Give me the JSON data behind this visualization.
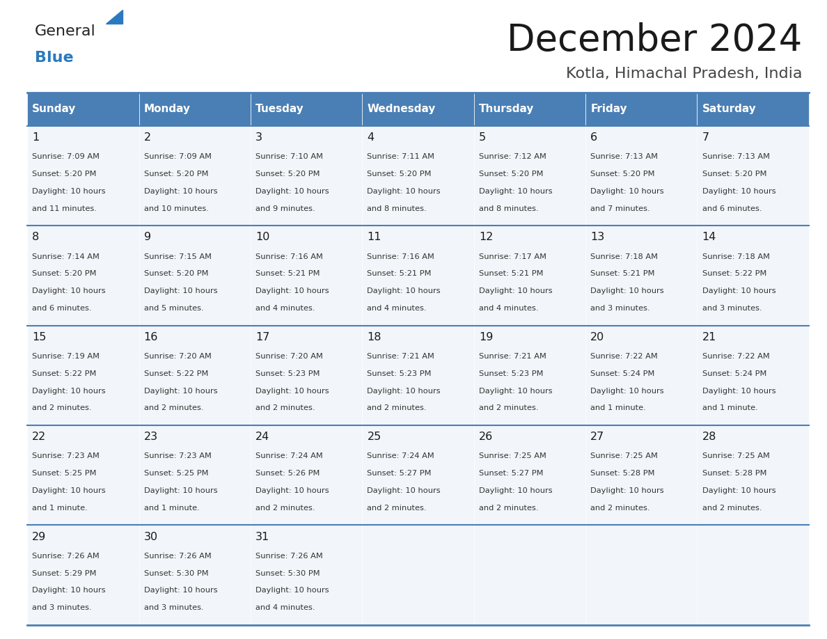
{
  "title": "December 2024",
  "subtitle": "Kotla, Himachal Pradesh, India",
  "header_bg_color": "#4a7fb5",
  "header_text_color": "#ffffff",
  "cell_bg": "#f2f5f9",
  "row_separator_color": "#4a7fb5",
  "day_headers": [
    "Sunday",
    "Monday",
    "Tuesday",
    "Wednesday",
    "Thursday",
    "Friday",
    "Saturday"
  ],
  "calendar_data": [
    [
      {
        "day": "1",
        "lines": [
          "Sunrise: 7:09 AM",
          "Sunset: 5:20 PM",
          "Daylight: 10 hours",
          "and 11 minutes."
        ]
      },
      {
        "day": "2",
        "lines": [
          "Sunrise: 7:09 AM",
          "Sunset: 5:20 PM",
          "Daylight: 10 hours",
          "and 10 minutes."
        ]
      },
      {
        "day": "3",
        "lines": [
          "Sunrise: 7:10 AM",
          "Sunset: 5:20 PM",
          "Daylight: 10 hours",
          "and 9 minutes."
        ]
      },
      {
        "day": "4",
        "lines": [
          "Sunrise: 7:11 AM",
          "Sunset: 5:20 PM",
          "Daylight: 10 hours",
          "and 8 minutes."
        ]
      },
      {
        "day": "5",
        "lines": [
          "Sunrise: 7:12 AM",
          "Sunset: 5:20 PM",
          "Daylight: 10 hours",
          "and 8 minutes."
        ]
      },
      {
        "day": "6",
        "lines": [
          "Sunrise: 7:13 AM",
          "Sunset: 5:20 PM",
          "Daylight: 10 hours",
          "and 7 minutes."
        ]
      },
      {
        "day": "7",
        "lines": [
          "Sunrise: 7:13 AM",
          "Sunset: 5:20 PM",
          "Daylight: 10 hours",
          "and 6 minutes."
        ]
      }
    ],
    [
      {
        "day": "8",
        "lines": [
          "Sunrise: 7:14 AM",
          "Sunset: 5:20 PM",
          "Daylight: 10 hours",
          "and 6 minutes."
        ]
      },
      {
        "day": "9",
        "lines": [
          "Sunrise: 7:15 AM",
          "Sunset: 5:20 PM",
          "Daylight: 10 hours",
          "and 5 minutes."
        ]
      },
      {
        "day": "10",
        "lines": [
          "Sunrise: 7:16 AM",
          "Sunset: 5:21 PM",
          "Daylight: 10 hours",
          "and 4 minutes."
        ]
      },
      {
        "day": "11",
        "lines": [
          "Sunrise: 7:16 AM",
          "Sunset: 5:21 PM",
          "Daylight: 10 hours",
          "and 4 minutes."
        ]
      },
      {
        "day": "12",
        "lines": [
          "Sunrise: 7:17 AM",
          "Sunset: 5:21 PM",
          "Daylight: 10 hours",
          "and 4 minutes."
        ]
      },
      {
        "day": "13",
        "lines": [
          "Sunrise: 7:18 AM",
          "Sunset: 5:21 PM",
          "Daylight: 10 hours",
          "and 3 minutes."
        ]
      },
      {
        "day": "14",
        "lines": [
          "Sunrise: 7:18 AM",
          "Sunset: 5:22 PM",
          "Daylight: 10 hours",
          "and 3 minutes."
        ]
      }
    ],
    [
      {
        "day": "15",
        "lines": [
          "Sunrise: 7:19 AM",
          "Sunset: 5:22 PM",
          "Daylight: 10 hours",
          "and 2 minutes."
        ]
      },
      {
        "day": "16",
        "lines": [
          "Sunrise: 7:20 AM",
          "Sunset: 5:22 PM",
          "Daylight: 10 hours",
          "and 2 minutes."
        ]
      },
      {
        "day": "17",
        "lines": [
          "Sunrise: 7:20 AM",
          "Sunset: 5:23 PM",
          "Daylight: 10 hours",
          "and 2 minutes."
        ]
      },
      {
        "day": "18",
        "lines": [
          "Sunrise: 7:21 AM",
          "Sunset: 5:23 PM",
          "Daylight: 10 hours",
          "and 2 minutes."
        ]
      },
      {
        "day": "19",
        "lines": [
          "Sunrise: 7:21 AM",
          "Sunset: 5:23 PM",
          "Daylight: 10 hours",
          "and 2 minutes."
        ]
      },
      {
        "day": "20",
        "lines": [
          "Sunrise: 7:22 AM",
          "Sunset: 5:24 PM",
          "Daylight: 10 hours",
          "and 1 minute."
        ]
      },
      {
        "day": "21",
        "lines": [
          "Sunrise: 7:22 AM",
          "Sunset: 5:24 PM",
          "Daylight: 10 hours",
          "and 1 minute."
        ]
      }
    ],
    [
      {
        "day": "22",
        "lines": [
          "Sunrise: 7:23 AM",
          "Sunset: 5:25 PM",
          "Daylight: 10 hours",
          "and 1 minute."
        ]
      },
      {
        "day": "23",
        "lines": [
          "Sunrise: 7:23 AM",
          "Sunset: 5:25 PM",
          "Daylight: 10 hours",
          "and 1 minute."
        ]
      },
      {
        "day": "24",
        "lines": [
          "Sunrise: 7:24 AM",
          "Sunset: 5:26 PM",
          "Daylight: 10 hours",
          "and 2 minutes."
        ]
      },
      {
        "day": "25",
        "lines": [
          "Sunrise: 7:24 AM",
          "Sunset: 5:27 PM",
          "Daylight: 10 hours",
          "and 2 minutes."
        ]
      },
      {
        "day": "26",
        "lines": [
          "Sunrise: 7:25 AM",
          "Sunset: 5:27 PM",
          "Daylight: 10 hours",
          "and 2 minutes."
        ]
      },
      {
        "day": "27",
        "lines": [
          "Sunrise: 7:25 AM",
          "Sunset: 5:28 PM",
          "Daylight: 10 hours",
          "and 2 minutes."
        ]
      },
      {
        "day": "28",
        "lines": [
          "Sunrise: 7:25 AM",
          "Sunset: 5:28 PM",
          "Daylight: 10 hours",
          "and 2 minutes."
        ]
      }
    ],
    [
      {
        "day": "29",
        "lines": [
          "Sunrise: 7:26 AM",
          "Sunset: 5:29 PM",
          "Daylight: 10 hours",
          "and 3 minutes."
        ]
      },
      {
        "day": "30",
        "lines": [
          "Sunrise: 7:26 AM",
          "Sunset: 5:30 PM",
          "Daylight: 10 hours",
          "and 3 minutes."
        ]
      },
      {
        "day": "31",
        "lines": [
          "Sunrise: 7:26 AM",
          "Sunset: 5:30 PM",
          "Daylight: 10 hours",
          "and 4 minutes."
        ]
      },
      null,
      null,
      null,
      null
    ]
  ],
  "logo_general_color": "#222222",
  "logo_blue_color": "#2a7abf",
  "bg_color": "#ffffff"
}
